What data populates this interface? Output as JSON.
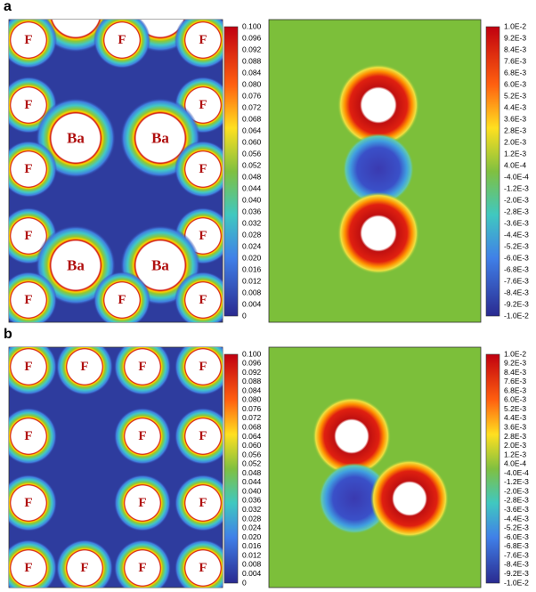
{
  "panels": [
    {
      "label": "a",
      "left": {
        "atoms": [
          "F",
          "F",
          "F",
          "F",
          "F",
          "Ba",
          "Ba",
          "F",
          "F",
          "F",
          "F",
          "Ba",
          "Ba",
          "F",
          "F",
          "F"
        ],
        "colorbar": [
          "0.100",
          "0.096",
          "0.092",
          "0.088",
          "0.084",
          "0.080",
          "0.076",
          "0.072",
          "0.068",
          "0.064",
          "0.060",
          "0.056",
          "0.052",
          "0.048",
          "0.044",
          "0.040",
          "0.036",
          "0.032",
          "0.028",
          "0.024",
          "0.020",
          "0.016",
          "0.012",
          "0.008",
          "0.004",
          "0"
        ]
      },
      "right": {
        "colorbar": [
          "1.0E-2",
          "9.2E-3",
          "8.4E-3",
          "7.6E-3",
          "6.8E-3",
          "6.0E-3",
          "5.2E-3",
          "4.4E-3",
          "3.6E-3",
          "2.8E-3",
          "2.0E-3",
          "1.2E-3",
          "4.0E-4",
          "-4.0E-4",
          "-1.2E-3",
          "-2.0E-3",
          "-2.8E-3",
          "-3.6E-3",
          "-4.4E-3",
          "-5.2E-3",
          "-6.0E-3",
          "-6.8E-3",
          "-7.6E-3",
          "-8.4E-3",
          "-9.2E-3",
          "-1.0E-2"
        ]
      }
    },
    {
      "label": "b",
      "left": {
        "atoms": [
          "F",
          "F",
          "F",
          "F",
          "F",
          "F",
          "F",
          "F",
          "F",
          "F",
          "F",
          "F",
          "F",
          "F"
        ],
        "colorbar": [
          "0.100",
          "0.096",
          "0.092",
          "0.088",
          "0.084",
          "0.080",
          "0.076",
          "0.072",
          "0.068",
          "0.064",
          "0.060",
          "0.056",
          "0.052",
          "0.048",
          "0.044",
          "0.040",
          "0.036",
          "0.032",
          "0.028",
          "0.024",
          "0.020",
          "0.016",
          "0.012",
          "0.008",
          "0.004",
          "0"
        ]
      },
      "right": {
        "colorbar": [
          "1.0E-2",
          "9.2E-3",
          "8.4E-3",
          "7.6E-3",
          "6.8E-3",
          "6.0E-3",
          "5.2E-3",
          "4.4E-3",
          "3.6E-3",
          "2.8E-3",
          "2.0E-3",
          "1.2E-3",
          "4.0E-4",
          "-4.0E-4",
          "-1.2E-3",
          "-2.0E-3",
          "-2.8E-3",
          "-3.6E-3",
          "-4.4E-3",
          "-5.2E-3",
          "-6.0E-3",
          "-6.8E-3",
          "-7.6E-3",
          "-8.4E-3",
          "-9.2E-3",
          "-1.0E-2"
        ]
      }
    }
  ]
}
